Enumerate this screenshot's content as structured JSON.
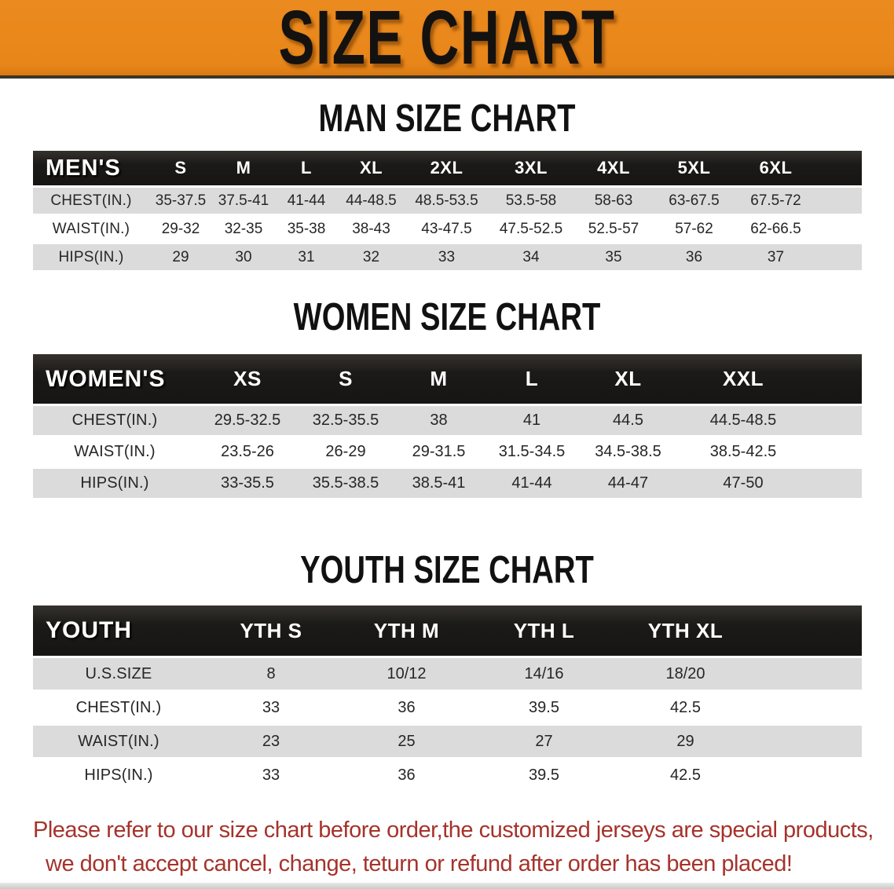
{
  "banner": {
    "title": "SIZE CHART"
  },
  "colors": {
    "banner_bg": "#EB8A1E",
    "banner_border": "#3B342A",
    "header_bar": "#171513",
    "stripe": "#DBDBDB",
    "footnote_text": "#A5332B",
    "heading_text": "#111111"
  },
  "sections": [
    {
      "heading": "MAN SIZE CHART",
      "table": {
        "corner": "MEN'S",
        "columns": [
          "S",
          "M",
          "L",
          "XL",
          "2XL",
          "3XL",
          "4XL",
          "5XL",
          "6XL"
        ],
        "rows": [
          {
            "label": "CHEST(IN.)",
            "values": [
              "35-37.5",
              "37.5-41",
              "41-44",
              "44-48.5",
              "48.5-53.5",
              "53.5-58",
              "58-63",
              "63-67.5",
              "67.5-72"
            ]
          },
          {
            "label": "WAIST(IN.)",
            "values": [
              "29-32",
              "32-35",
              "35-38",
              "38-43",
              "43-47.5",
              "47.5-52.5",
              "52.5-57",
              "57-62",
              "62-66.5"
            ]
          },
          {
            "label": "HIPS(IN.)",
            "values": [
              "29",
              "30",
              "31",
              "32",
              "33",
              "34",
              "35",
              "36",
              "37"
            ]
          }
        ]
      }
    },
    {
      "heading": "WOMEN SIZE CHART",
      "table": {
        "corner": "WOMEN'S",
        "columns": [
          "XS",
          "S",
          "M",
          "L",
          "XL",
          "XXL"
        ],
        "rows": [
          {
            "label": "CHEST(IN.)",
            "values": [
              "29.5-32.5",
              "32.5-35.5",
              "38",
              "41",
              "44.5",
              "44.5-48.5"
            ]
          },
          {
            "label": "WAIST(IN.)",
            "values": [
              "23.5-26",
              "26-29",
              "29-31.5",
              "31.5-34.5",
              "34.5-38.5",
              "38.5-42.5"
            ]
          },
          {
            "label": "HIPS(IN.)",
            "values": [
              "33-35.5",
              "35.5-38.5",
              "38.5-41",
              "41-44",
              "44-47",
              "47-50"
            ]
          }
        ]
      }
    },
    {
      "heading": "YOUTH SIZE CHART",
      "table": {
        "corner": "YOUTH",
        "columns": [
          "YTH S",
          "YTH M",
          "YTH L",
          "YTH XL"
        ],
        "rows": [
          {
            "label": "U.S.SIZE",
            "values": [
              "8",
              "10/12",
              "14/16",
              "18/20"
            ]
          },
          {
            "label": "CHEST(IN.)",
            "values": [
              "33",
              "36",
              "39.5",
              "42.5"
            ]
          },
          {
            "label": "WAIST(IN.)",
            "values": [
              "23",
              "25",
              "27",
              "29"
            ]
          },
          {
            "label": "HIPS(IN.)",
            "values": [
              "33",
              "36",
              "39.5",
              "42.5"
            ]
          }
        ]
      }
    }
  ],
  "footnote": {
    "line1": "Please refer to our size chart before order,the customized jerseys are special products,",
    "line2": "we don't accept cancel, change, teturn or refund after order has been placed!"
  }
}
